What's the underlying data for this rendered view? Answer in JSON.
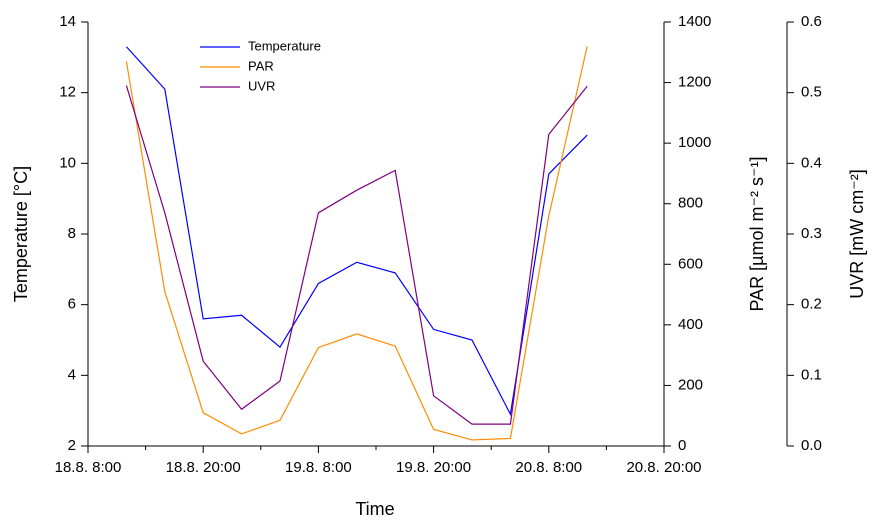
{
  "chart_data": {
    "type": "line",
    "x_label": "Time",
    "y_label": "Temperature [°C]",
    "y2_label": "PAR [µmol m⁻² s⁻¹]",
    "y3_label": "UVR [mW cm⁻²]",
    "x": [
      "18.8. 12:00",
      "18.8. 16:00",
      "18.8. 20:00",
      "19.8. 0:00",
      "19.8. 4:00",
      "19.8. 8:00",
      "19.8. 12:00",
      "19.8. 16:00",
      "19.8. 20:00",
      "20.8. 0:00",
      "20.8. 4:00",
      "20.8. 8:00",
      "20.8. 12:00"
    ],
    "xlim": [
      "18.8. 8:00",
      "20.8. 20:00"
    ],
    "xticks": [
      "18.8. 8:00",
      "18.8. 20:00",
      "19.8. 8:00",
      "19.8. 20:00",
      "20.8. 8:00",
      "20.8. 20:00"
    ],
    "ylim": [
      2,
      14
    ],
    "yticks": [
      2,
      4,
      6,
      8,
      10,
      12,
      14
    ],
    "y2lim": [
      0,
      1400
    ],
    "y2ticks": [
      0,
      200,
      400,
      600,
      800,
      1000,
      1200,
      1400
    ],
    "y3lim": [
      0,
      0.6
    ],
    "y3ticks": [
      {
        "value": 0,
        "label": "0.0"
      },
      0.1,
      0.2,
      0.3,
      0.4,
      0.5,
      0.6
    ],
    "series": [
      {
        "name": "Temperature",
        "color": "#0000ff",
        "axis": "y",
        "values": [
          13.3,
          12.1,
          5.6,
          5.7,
          4.8,
          6.6,
          7.2,
          6.9,
          5.3,
          5.0,
          2.9,
          9.7,
          10.8
        ]
      },
      {
        "name": "PAR",
        "color": "#ff8c00",
        "axis": "y2",
        "values": [
          1270,
          510,
          110,
          40,
          85,
          325,
          370,
          330,
          55,
          20,
          25,
          760,
          1320
        ]
      },
      {
        "name": "UVR",
        "color": "#800080",
        "axis": "y3",
        "values": [
          0.51,
          0.33,
          0.12,
          0.052,
          0.092,
          0.33,
          0.362,
          0.39,
          0.071,
          0.031,
          0.031,
          0.441,
          0.509
        ]
      }
    ],
    "legend": "upper-left"
  }
}
